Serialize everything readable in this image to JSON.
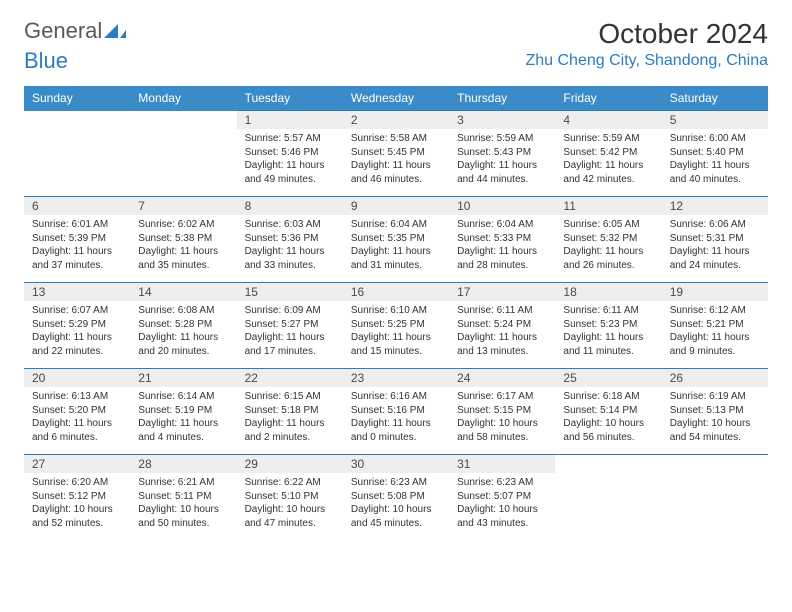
{
  "logo": {
    "text1": "General",
    "text2": "Blue"
  },
  "title": "October 2024",
  "location": "Zhu Cheng City, Shandong, China",
  "colors": {
    "header_bg": "#3b8bc9",
    "accent": "#2d7bc0",
    "daynum_bg": "#eeeeee",
    "text": "#333333",
    "logo_gray": "#5a5a5a"
  },
  "typography": {
    "title_fontsize": 28,
    "location_fontsize": 16,
    "weekday_fontsize": 12,
    "daynum_fontsize": 12,
    "body_fontsize": 10
  },
  "weekdays": [
    "Sunday",
    "Monday",
    "Tuesday",
    "Wednesday",
    "Thursday",
    "Friday",
    "Saturday"
  ],
  "cells": [
    {
      "blank": true
    },
    {
      "blank": true
    },
    {
      "n": "1",
      "sr": "5:57 AM",
      "ss": "5:46 PM",
      "dl": "11 hours and 49 minutes."
    },
    {
      "n": "2",
      "sr": "5:58 AM",
      "ss": "5:45 PM",
      "dl": "11 hours and 46 minutes."
    },
    {
      "n": "3",
      "sr": "5:59 AM",
      "ss": "5:43 PM",
      "dl": "11 hours and 44 minutes."
    },
    {
      "n": "4",
      "sr": "5:59 AM",
      "ss": "5:42 PM",
      "dl": "11 hours and 42 minutes."
    },
    {
      "n": "5",
      "sr": "6:00 AM",
      "ss": "5:40 PM",
      "dl": "11 hours and 40 minutes."
    },
    {
      "n": "6",
      "sr": "6:01 AM",
      "ss": "5:39 PM",
      "dl": "11 hours and 37 minutes."
    },
    {
      "n": "7",
      "sr": "6:02 AM",
      "ss": "5:38 PM",
      "dl": "11 hours and 35 minutes."
    },
    {
      "n": "8",
      "sr": "6:03 AM",
      "ss": "5:36 PM",
      "dl": "11 hours and 33 minutes."
    },
    {
      "n": "9",
      "sr": "6:04 AM",
      "ss": "5:35 PM",
      "dl": "11 hours and 31 minutes."
    },
    {
      "n": "10",
      "sr": "6:04 AM",
      "ss": "5:33 PM",
      "dl": "11 hours and 28 minutes."
    },
    {
      "n": "11",
      "sr": "6:05 AM",
      "ss": "5:32 PM",
      "dl": "11 hours and 26 minutes."
    },
    {
      "n": "12",
      "sr": "6:06 AM",
      "ss": "5:31 PM",
      "dl": "11 hours and 24 minutes."
    },
    {
      "n": "13",
      "sr": "6:07 AM",
      "ss": "5:29 PM",
      "dl": "11 hours and 22 minutes."
    },
    {
      "n": "14",
      "sr": "6:08 AM",
      "ss": "5:28 PM",
      "dl": "11 hours and 20 minutes."
    },
    {
      "n": "15",
      "sr": "6:09 AM",
      "ss": "5:27 PM",
      "dl": "11 hours and 17 minutes."
    },
    {
      "n": "16",
      "sr": "6:10 AM",
      "ss": "5:25 PM",
      "dl": "11 hours and 15 minutes."
    },
    {
      "n": "17",
      "sr": "6:11 AM",
      "ss": "5:24 PM",
      "dl": "11 hours and 13 minutes."
    },
    {
      "n": "18",
      "sr": "6:11 AM",
      "ss": "5:23 PM",
      "dl": "11 hours and 11 minutes."
    },
    {
      "n": "19",
      "sr": "6:12 AM",
      "ss": "5:21 PM",
      "dl": "11 hours and 9 minutes."
    },
    {
      "n": "20",
      "sr": "6:13 AM",
      "ss": "5:20 PM",
      "dl": "11 hours and 6 minutes."
    },
    {
      "n": "21",
      "sr": "6:14 AM",
      "ss": "5:19 PM",
      "dl": "11 hours and 4 minutes."
    },
    {
      "n": "22",
      "sr": "6:15 AM",
      "ss": "5:18 PM",
      "dl": "11 hours and 2 minutes."
    },
    {
      "n": "23",
      "sr": "6:16 AM",
      "ss": "5:16 PM",
      "dl": "11 hours and 0 minutes."
    },
    {
      "n": "24",
      "sr": "6:17 AM",
      "ss": "5:15 PM",
      "dl": "10 hours and 58 minutes."
    },
    {
      "n": "25",
      "sr": "6:18 AM",
      "ss": "5:14 PM",
      "dl": "10 hours and 56 minutes."
    },
    {
      "n": "26",
      "sr": "6:19 AM",
      "ss": "5:13 PM",
      "dl": "10 hours and 54 minutes."
    },
    {
      "n": "27",
      "sr": "6:20 AM",
      "ss": "5:12 PM",
      "dl": "10 hours and 52 minutes."
    },
    {
      "n": "28",
      "sr": "6:21 AM",
      "ss": "5:11 PM",
      "dl": "10 hours and 50 minutes."
    },
    {
      "n": "29",
      "sr": "6:22 AM",
      "ss": "5:10 PM",
      "dl": "10 hours and 47 minutes."
    },
    {
      "n": "30",
      "sr": "6:23 AM",
      "ss": "5:08 PM",
      "dl": "10 hours and 45 minutes."
    },
    {
      "n": "31",
      "sr": "6:23 AM",
      "ss": "5:07 PM",
      "dl": "10 hours and 43 minutes."
    },
    {
      "blank": true
    },
    {
      "blank": true
    }
  ],
  "labels": {
    "sunrise": "Sunrise: ",
    "sunset": "Sunset: ",
    "daylight": "Daylight: "
  }
}
